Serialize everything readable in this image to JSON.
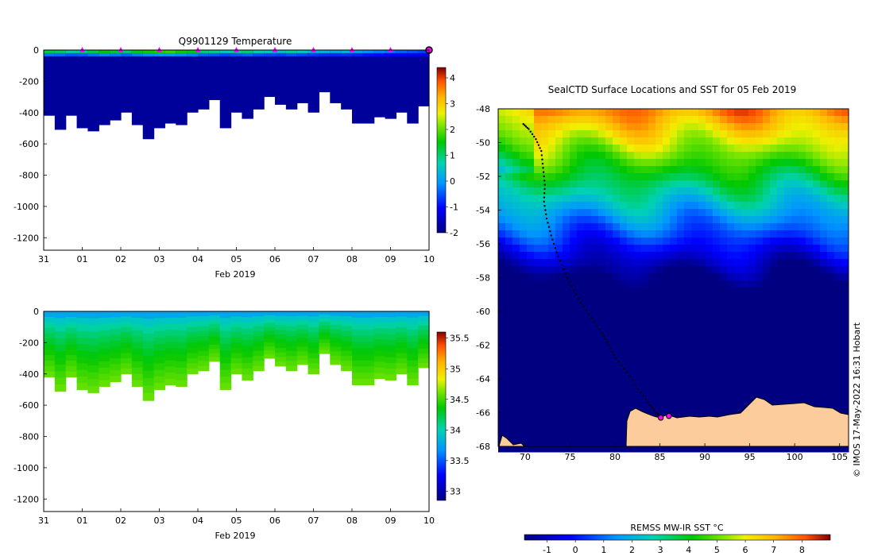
{
  "chart_data": [
    {
      "type": "heatmap",
      "title": "Q9901129  Temperature",
      "xlabel": "Feb 2019",
      "x_ticks": [
        "31",
        "01",
        "02",
        "03",
        "04",
        "05",
        "06",
        "07",
        "08",
        "09",
        "10"
      ],
      "xlim": [
        0,
        10
      ],
      "y_ticks": [
        "0",
        "-200",
        "-400",
        "-600",
        "-800",
        "-1000",
        "-1200"
      ],
      "ylim": [
        -1280,
        0
      ],
      "colorbar": {
        "ticks": [
          "4",
          "3",
          "2",
          "1",
          "0",
          "-1",
          "-2"
        ],
        "range": [
          -2,
          4.4
        ]
      },
      "profile_marker_days": [
        1,
        2,
        3,
        4,
        5,
        6,
        7,
        8,
        9
      ],
      "profile_bottom_depths": [
        420,
        510,
        420,
        500,
        520,
        480,
        450,
        400,
        480,
        570,
        500,
        470,
        480,
        400,
        380,
        320,
        500,
        400,
        440,
        380,
        300,
        350,
        380,
        340,
        400,
        270,
        340,
        380,
        470,
        470,
        430,
        440,
        400,
        470,
        360
      ],
      "surface_temperatures": [
        1.2,
        1.1,
        0.8,
        0.9,
        1.2,
        1.5,
        1.3,
        1.0,
        1.4,
        1.6,
        1.7,
        1.8,
        1.6,
        1.4,
        1.0,
        0.9,
        0.6,
        0.8,
        1.0,
        0.7,
        0.6,
        0.5,
        0.8,
        0.6,
        0.4,
        0.3,
        0.2,
        0.3,
        0.1,
        -0.1,
        -0.2,
        -0.3,
        -0.4,
        -0.5,
        -0.6
      ],
      "deep_temperature": -1.8
    },
    {
      "type": "heatmap",
      "title": "",
      "xlabel": "Feb 2019",
      "x_ticks": [
        "31",
        "01",
        "02",
        "03",
        "04",
        "05",
        "06",
        "07",
        "08",
        "09",
        "10"
      ],
      "xlim": [
        0,
        10
      ],
      "y_ticks": [
        "0",
        "-200",
        "-400",
        "-600",
        "-800",
        "-1000",
        "-1200"
      ],
      "ylim": [
        -1280,
        0
      ],
      "colorbar": {
        "ticks": [
          "35.5",
          "35",
          "34.5",
          "34",
          "33.5",
          "33"
        ],
        "range": [
          32.85,
          35.6
        ]
      },
      "surface_salinity": 33.5,
      "deep_salinity": 34.6
    },
    {
      "type": "heatmap",
      "title": "SealCTD Surface Locations and SST for 05 Feb 2019",
      "x_ticks": [
        "70",
        "75",
        "80",
        "85",
        "90",
        "95",
        "100",
        "105"
      ],
      "xlim": [
        67,
        106
      ],
      "y_ticks": [
        "-48",
        "-50",
        "-52",
        "-54",
        "-56",
        "-58",
        "-60",
        "-62",
        "-64",
        "-66",
        "-68"
      ],
      "ylim": [
        -68,
        -48
      ],
      "track": [
        [
          69.8,
          -48.9
        ],
        [
          70.4,
          -49.2
        ],
        [
          71.2,
          -49.8
        ],
        [
          71.8,
          -50.5
        ],
        [
          72.0,
          -51.5
        ],
        [
          72.2,
          -52.5
        ],
        [
          72.1,
          -53.5
        ],
        [
          72.4,
          -54.5
        ],
        [
          72.9,
          -55.5
        ],
        [
          73.5,
          -56.5
        ],
        [
          74.3,
          -57.5
        ],
        [
          75.2,
          -58.5
        ],
        [
          76.2,
          -59.5
        ],
        [
          77.4,
          -60.4
        ],
        [
          78.6,
          -61.3
        ],
        [
          79.3,
          -62.0
        ],
        [
          80.1,
          -62.8
        ],
        [
          81.3,
          -63.6
        ],
        [
          82.6,
          -64.6
        ],
        [
          83.7,
          -65.4
        ],
        [
          84.6,
          -66.0
        ],
        [
          85.1,
          -66.3
        ]
      ],
      "surface_locations_marked": [
        [
          85.1,
          -66.3
        ],
        [
          86.0,
          -66.2
        ]
      ],
      "sst_colorbar": {
        "label": "REMSS MW-IR SST °C",
        "ticks": [
          "-1",
          "0",
          "1",
          "2",
          "3",
          "4",
          "5",
          "6",
          "7",
          "8"
        ],
        "range": [
          -1.8,
          9.0
        ]
      },
      "credit": "© IMOS 17-May-2022 16:31 Hobart"
    }
  ]
}
